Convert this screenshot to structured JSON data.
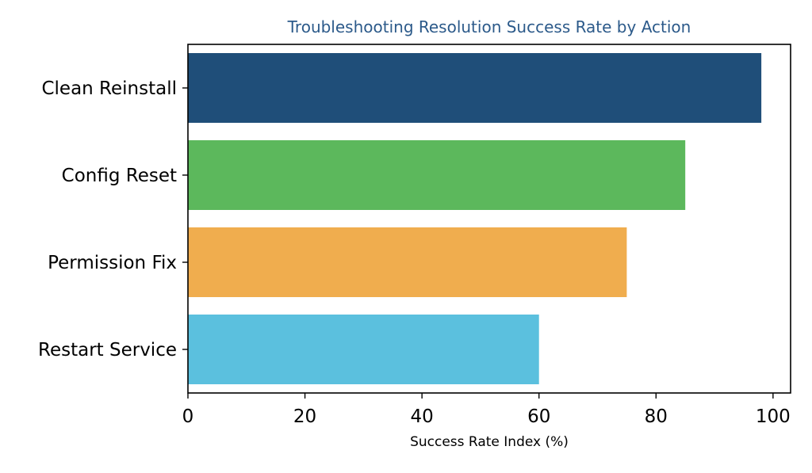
{
  "colors": {
    "title": "#2c5a8a",
    "axis": "#000000"
  },
  "chart_data": {
    "type": "bar",
    "orientation": "horizontal",
    "title": "Troubleshooting Resolution Success Rate by Action",
    "xlabel": "Success Rate Index (%)",
    "ylabel": "",
    "xlim": [
      0,
      103
    ],
    "xticks": [
      "0",
      "20",
      "40",
      "60",
      "80",
      "100"
    ],
    "grid": false,
    "categories": [
      "Clean Reinstall",
      "Config Reset",
      "Permission Fix",
      "Restart Service"
    ],
    "values": [
      98,
      85,
      75,
      60
    ],
    "bar_colors": [
      "#1f4e79",
      "#5cb85c",
      "#f0ad4e",
      "#5bc0de"
    ]
  }
}
